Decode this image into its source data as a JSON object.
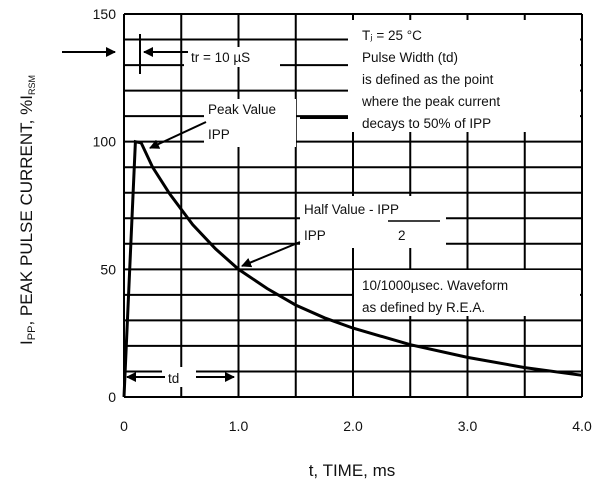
{
  "chart_data": {
    "type": "line",
    "x_label": "t, TIME, ms",
    "y_label": {
      "main": "I",
      "main_sub": "PP",
      "text": ", PEAK PULSE CURRENT, %I",
      "end_sub": "RSM"
    },
    "xlim": [
      0,
      4.0
    ],
    "ylim": [
      0,
      150
    ],
    "x_ticks": [
      {
        "value": 0,
        "label": "0"
      },
      {
        "value": 1,
        "label": "1.0"
      },
      {
        "value": 2,
        "label": "2.0"
      },
      {
        "value": 3,
        "label": "3.0"
      },
      {
        "value": 4,
        "label": "4.0"
      }
    ],
    "y_ticks": [
      {
        "value": 0,
        "label": "0"
      },
      {
        "value": 50,
        "label": "50"
      },
      {
        "value": 100,
        "label": "100"
      },
      {
        "value": 150,
        "label": "150"
      }
    ],
    "grid": true,
    "series": [
      {
        "x": [
          0,
          0.1,
          0.15,
          0.25,
          0.4,
          0.6,
          0.8,
          1.0,
          1.25,
          1.5,
          1.75,
          2.0,
          2.5,
          3.0,
          3.5,
          4.0
        ],
        "y": [
          0,
          100,
          99.5,
          90,
          79.5,
          67.5,
          58,
          50,
          42.5,
          36,
          31,
          27,
          20.5,
          15.5,
          11.5,
          8.5
        ]
      }
    ],
    "annotations": {
      "tr": "tr = 10 µS",
      "td": "td",
      "peak_value": "Peak Value",
      "peak_ipp": "IPP",
      "half_value": "Half Value - IPP",
      "half_num": "IPP",
      "half_den": "2",
      "conditions": [
        "Tⱼ = 25 °C",
        "Pulse Width (td)",
        "is defined as the point",
        "where the peak current",
        "decays to 50% of IPP"
      ],
      "waveform": [
        "10/1000µsec.  Waveform",
        "as defined by R.E.A."
      ]
    }
  }
}
